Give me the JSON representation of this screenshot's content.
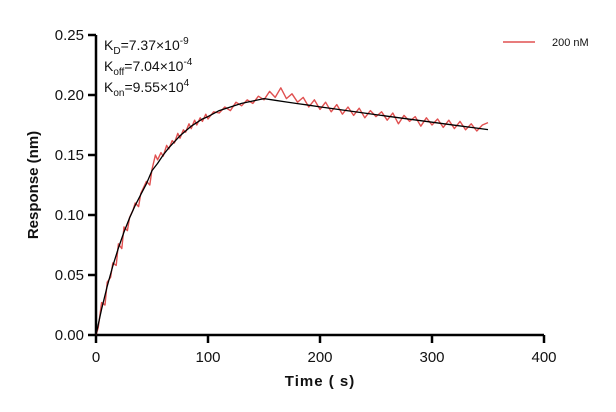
{
  "chart_data": {
    "type": "line",
    "title": "",
    "xlabel": "Time ( s)",
    "ylabel": "Response (nm)",
    "xlim": [
      0,
      400
    ],
    "ylim": [
      0,
      0.25
    ],
    "xticks": [
      0,
      100,
      200,
      300,
      400
    ],
    "yticks": [
      0.0,
      0.05,
      0.1,
      0.15,
      0.2,
      0.25
    ],
    "xtick_labels": [
      "0",
      "100",
      "200",
      "300",
      "400"
    ],
    "ytick_labels": [
      "0.00",
      "0.05",
      "0.10",
      "0.15",
      "0.20",
      "0.25"
    ],
    "grid": false,
    "legend_position": "top-right",
    "annotations": [
      {
        "base": "K",
        "sub": "D",
        "text": "=7.37×10",
        "sup": "-9"
      },
      {
        "base": "K",
        "sub": "off",
        "text": "=7.04×10",
        "sup": "-4"
      },
      {
        "base": "K",
        "sub": "on",
        "text": "=9.55×10",
        "sup": "4"
      }
    ],
    "series": [
      {
        "name": "200 nM",
        "color": "#e05050",
        "x": [
          0,
          2,
          5,
          8,
          10,
          13,
          15,
          18,
          20,
          23,
          25,
          28,
          30,
          33,
          35,
          38,
          40,
          43,
          45,
          48,
          50,
          53,
          55,
          58,
          60,
          63,
          65,
          68,
          70,
          73,
          75,
          78,
          80,
          83,
          85,
          88,
          90,
          93,
          95,
          98,
          100,
          105,
          110,
          115,
          120,
          125,
          130,
          135,
          140,
          145,
          150,
          155,
          160,
          165,
          170,
          175,
          180,
          185,
          190,
          195,
          200,
          205,
          210,
          215,
          220,
          225,
          230,
          235,
          240,
          245,
          250,
          255,
          260,
          265,
          270,
          275,
          280,
          285,
          290,
          295,
          300,
          305,
          310,
          315,
          320,
          325,
          330,
          335,
          340,
          345,
          350
        ],
        "y": [
          0.0,
          0.006,
          0.027,
          0.025,
          0.044,
          0.048,
          0.06,
          0.058,
          0.076,
          0.072,
          0.09,
          0.087,
          0.098,
          0.104,
          0.11,
          0.107,
          0.118,
          0.124,
          0.128,
          0.125,
          0.138,
          0.15,
          0.146,
          0.152,
          0.149,
          0.158,
          0.155,
          0.162,
          0.16,
          0.168,
          0.164,
          0.171,
          0.169,
          0.176,
          0.172,
          0.179,
          0.175,
          0.181,
          0.178,
          0.184,
          0.18,
          0.186,
          0.185,
          0.19,
          0.187,
          0.194,
          0.191,
          0.196,
          0.193,
          0.199,
          0.196,
          0.203,
          0.198,
          0.206,
          0.197,
          0.201,
          0.194,
          0.198,
          0.19,
          0.196,
          0.188,
          0.194,
          0.186,
          0.192,
          0.184,
          0.19,
          0.183,
          0.189,
          0.181,
          0.187,
          0.182,
          0.186,
          0.179,
          0.185,
          0.176,
          0.183,
          0.178,
          0.182,
          0.174,
          0.181,
          0.175,
          0.18,
          0.173,
          0.179,
          0.172,
          0.178,
          0.171,
          0.176,
          0.17,
          0.175,
          0.177
        ]
      },
      {
        "color": "#000000",
        "x": [
          0,
          5,
          10,
          15,
          20,
          25,
          30,
          35,
          40,
          45,
          50,
          55,
          60,
          65,
          70,
          75,
          80,
          85,
          90,
          95,
          100,
          110,
          120,
          130,
          140,
          150,
          160,
          170,
          180,
          190,
          200,
          220,
          240,
          260,
          280,
          300,
          320,
          340,
          350
        ],
        "y": [
          0,
          0.0216,
          0.0406,
          0.0575,
          0.0725,
          0.0858,
          0.0976,
          0.108,
          0.117,
          0.126,
          0.137,
          0.143,
          0.15,
          0.156,
          0.161,
          0.166,
          0.17,
          0.174,
          0.177,
          0.18,
          0.182,
          0.187,
          0.19,
          0.193,
          0.195,
          0.197,
          0.1956,
          0.1942,
          0.1928,
          0.1915,
          0.1901,
          0.1875,
          0.1849,
          0.1823,
          0.1798,
          0.1773,
          0.1748,
          0.1724,
          0.1712
        ]
      }
    ]
  }
}
